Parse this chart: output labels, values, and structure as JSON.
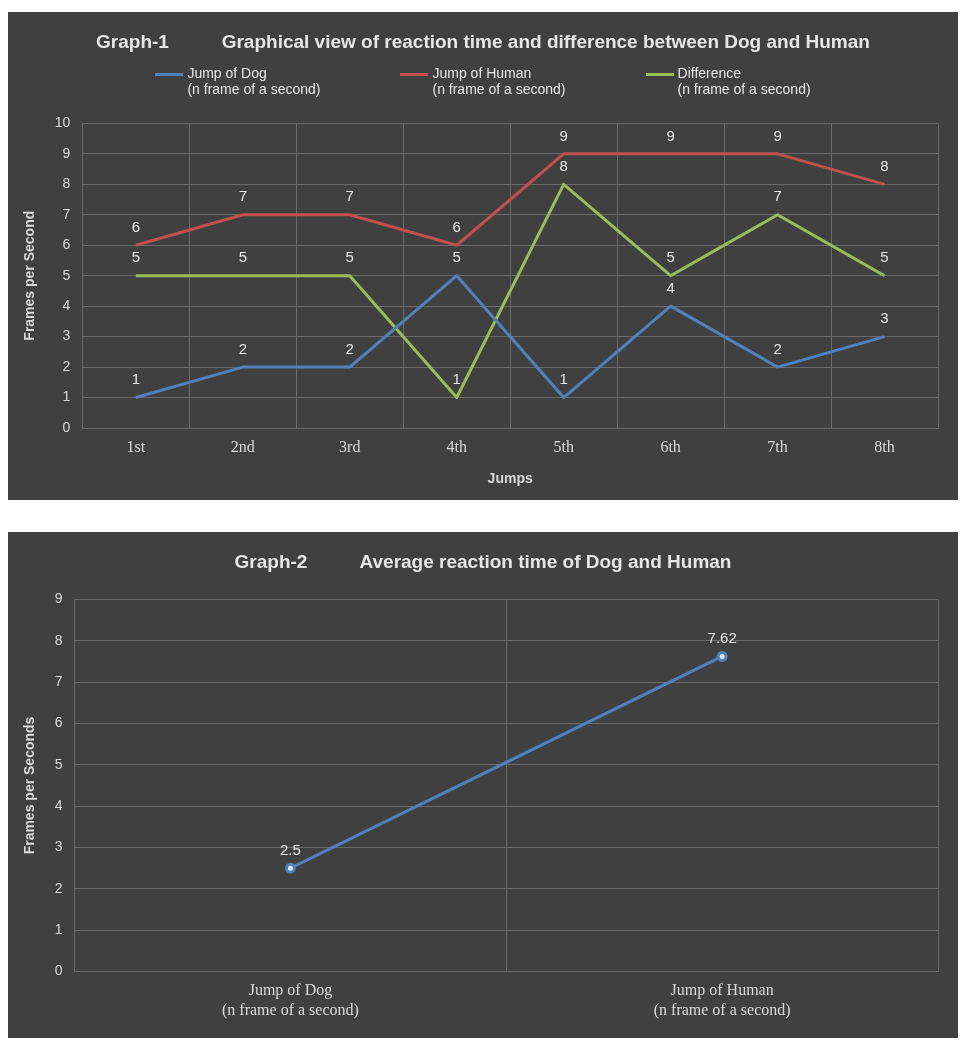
{
  "chart_data": [
    {
      "type": "line",
      "title": "Graph-1          Graphical view of reaction time and difference between Dog and Human",
      "xlabel": "Jumps",
      "ylabel": "Frames per Second",
      "categories": [
        "1st",
        "2nd",
        "3rd",
        "4th",
        "5th",
        "6th",
        "7th",
        "8th"
      ],
      "series": [
        {
          "name": "Jump of Dog\n(n frame of a second)",
          "color": "#4f81bd",
          "values": [
            1,
            2,
            2,
            5,
            1,
            4,
            2,
            3
          ]
        },
        {
          "name": "Jump of Human\n(n frame of a second)",
          "color": "#c0504d",
          "values": [
            6,
            7,
            7,
            6,
            9,
            9,
            9,
            8
          ]
        },
        {
          "name": "Difference\n(n frame of a second)",
          "color": "#9bbb59",
          "values": [
            5,
            5,
            5,
            1,
            8,
            5,
            7,
            5
          ]
        }
      ],
      "ylim": [
        0,
        10
      ],
      "yticks": [
        0,
        1,
        2,
        3,
        4,
        5,
        6,
        7,
        8,
        9,
        10
      ],
      "grid": true,
      "legend": "top",
      "data_labels": true,
      "marker": "none"
    },
    {
      "type": "line",
      "title": "Graph-2          Average reaction time of Dog and Human",
      "ylabel": "Frames per Seconds",
      "categories": [
        "Jump of Dog\n(n frame of a second)",
        "Jump of Human\n(n frame of a second)"
      ],
      "series": [
        {
          "color": "#4f81bd",
          "values": [
            2.5,
            7.62
          ]
        }
      ],
      "ylim": [
        0,
        9
      ],
      "yticks": [
        0,
        1,
        2,
        3,
        4,
        5,
        6,
        7,
        8,
        9
      ],
      "grid": true,
      "data_labels": true,
      "marker": "circle"
    }
  ]
}
